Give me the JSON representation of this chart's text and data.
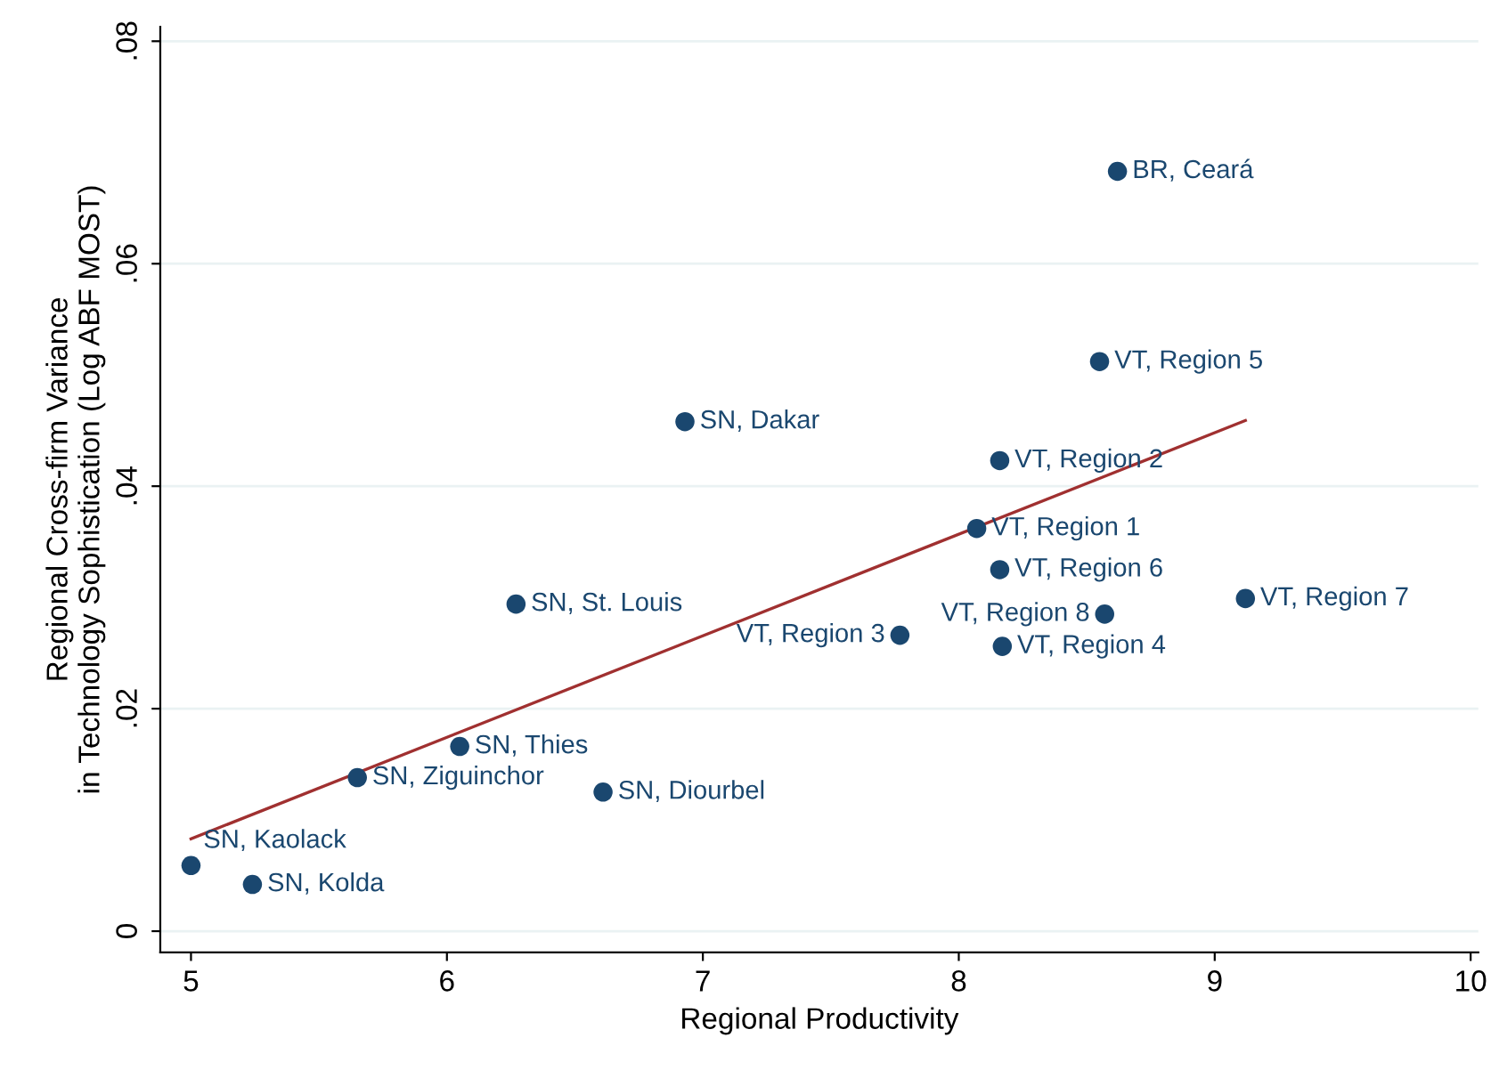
{
  "chart_data": {
    "type": "scatter",
    "xlabel": "Regional Productivity",
    "ylabel": "Regional Cross-firm Variance\nin Technology Sophistication (Log ABF MOST)",
    "xlim": [
      4.88,
      10.03
    ],
    "ylim": [
      -0.0019,
      0.0813
    ],
    "xticks": [
      5,
      6,
      7,
      8,
      9,
      10
    ],
    "yticks": [
      0,
      {
        "value": 0.02,
        "label": ".02"
      },
      {
        "value": 0.04,
        "label": ".04"
      },
      {
        "value": 0.06,
        "label": ".06"
      },
      {
        "value": 0.08,
        "label": ".08"
      }
    ],
    "grid": "y",
    "series": [
      {
        "marker": "circle",
        "color": "#1a476f",
        "x": [
          8.62,
          8.55,
          6.93,
          8.16,
          8.07,
          8.16,
          9.12,
          8.57,
          7.77,
          8.17,
          6.27,
          6.05,
          5.65,
          6.61,
          5.0,
          5.24
        ],
        "values": [
          0.0683,
          0.0512,
          0.0458,
          0.0423,
          0.0362,
          0.0325,
          0.0299,
          0.0285,
          0.0266,
          0.0256,
          0.0294,
          0.0166,
          0.0138,
          0.0125,
          0.0059,
          0.0042
        ]
      },
      {
        "type": "line",
        "color": "#a03030",
        "x": [
          5.0,
          9.12
        ],
        "values": [
          0.0083,
          0.0459
        ]
      }
    ],
    "annotations": [
      {
        "text": "BR, Ceará",
        "x": 8.62,
        "y": 0.0683
      },
      {
        "text": "VT, Region 5",
        "x": 8.55,
        "y": 0.0512
      },
      {
        "text": "SN, Dakar",
        "x": 6.93,
        "y": 0.0458
      },
      {
        "text": "VT, Region 2",
        "x": 8.16,
        "y": 0.0423
      },
      {
        "text": "VT, Region 1",
        "x": 8.07,
        "y": 0.0362
      },
      {
        "text": "VT, Region 6",
        "x": 8.16,
        "y": 0.0325
      },
      {
        "text": "VT, Region 7",
        "x": 9.12,
        "y": 0.0299
      },
      {
        "text": "VT, Region 8",
        "x": 8.57,
        "y": 0.0285
      },
      {
        "text": "VT, Region 3",
        "x": 7.77,
        "y": 0.0266
      },
      {
        "text": "VT, Region 4",
        "x": 8.17,
        "y": 0.0256
      },
      {
        "text": "SN, St. Louis",
        "x": 6.27,
        "y": 0.0294
      },
      {
        "text": "SN, Thies",
        "x": 6.05,
        "y": 0.0166
      },
      {
        "text": "SN, Ziguinchor",
        "x": 5.65,
        "y": 0.0138
      },
      {
        "text": "SN, Diourbel",
        "x": 6.61,
        "y": 0.0125
      },
      {
        "text": "SN, Kaolack",
        "x": 5.0,
        "y": 0.0059
      },
      {
        "text": "SN, Kolda",
        "x": 5.24,
        "y": 0.0042
      }
    ]
  }
}
